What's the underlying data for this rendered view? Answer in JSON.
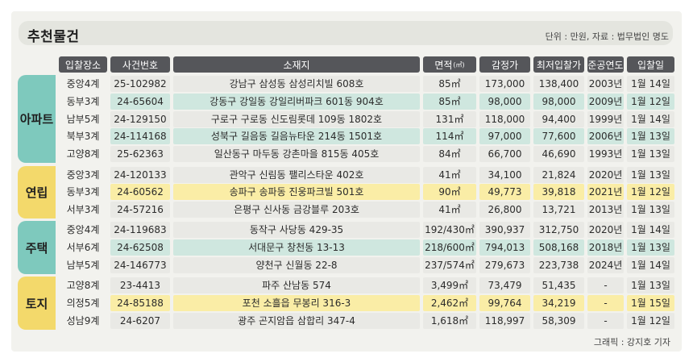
{
  "title": "추천물건",
  "unit_note": "단위 : 만원, 자료 : 법무법인 명도",
  "credit": "그래픽 : 강지호 기자",
  "colors": {
    "header": "#55565a",
    "apartment_group": "#7ec9bd",
    "apartment_stripe": "#cfe7df",
    "villa_group": "#f3d96b",
    "villa_stripe": "#faeda6",
    "house_group": "#7ec9bd",
    "house_stripe": "#cfe7df",
    "land_group": "#f3d96b",
    "land_stripe": "#faeda6",
    "plain": "#e9e9e5"
  },
  "headers": [
    "입찰장소",
    "사건번호",
    "소재지",
    "면적",
    "감정가",
    "최저입찰가",
    "준공연도",
    "입찰일"
  ],
  "area_unit": "(㎡)",
  "groups": [
    {
      "name": "아파트",
      "rows": [
        [
          "중앙4계",
          "25-102982",
          "강남구 삼성동 삼성리치빌 608호",
          "85㎡",
          "173,000",
          "138,400",
          "2003년",
          "1월 14일"
        ],
        [
          "동부3계",
          "24-65604",
          "강동구 강일동 강일리버파크 601동 904호",
          "85㎡",
          "98,000",
          "98,000",
          "2009년",
          "1월 12일"
        ],
        [
          "남부5계",
          "24-129150",
          "구로구 구로동 신도림롯데 109동 1802호",
          "131㎡",
          "118,000",
          "94,400",
          "1999년",
          "1월 14일"
        ],
        [
          "북부3계",
          "24-114168",
          "성북구 길음동 길음뉴타운 214동 1501호",
          "114㎡",
          "97,000",
          "77,600",
          "2006년",
          "1월 13일"
        ],
        [
          "고양8계",
          "25-62363",
          "일산동구 마두동 강촌마을 815동 405호",
          "84㎡",
          "66,700",
          "46,690",
          "1993년",
          "1월 13일"
        ]
      ]
    },
    {
      "name": "연립",
      "rows": [
        [
          "중앙3계",
          "24-120133",
          "관악구 신림동 팰리스타운 402호",
          "41㎡",
          "34,100",
          "21,824",
          "2020년",
          "1월 13일"
        ],
        [
          "동부3계",
          "24-60562",
          "송파구 송파동 진웅파크빌 501호",
          "90㎡",
          "49,773",
          "39,818",
          "2021년",
          "1월 12일"
        ],
        [
          "서부3계",
          "24-57216",
          "은평구 신사동 금강블루 203호",
          "41㎡",
          "26,800",
          "13,721",
          "2013년",
          "1월 13일"
        ]
      ]
    },
    {
      "name": "주택",
      "rows": [
        [
          "중앙4계",
          "24-119683",
          "동작구 사당동 429-35",
          "192/430㎡",
          "390,937",
          "312,750",
          "2020년",
          "1월 14일"
        ],
        [
          "서부6계",
          "24-62508",
          "서대문구 창천동 13-13",
          "218/600㎡",
          "794,013",
          "508,168",
          "2018년",
          "1월 13일"
        ],
        [
          "남부5계",
          "24-146773",
          "양천구 신월동 22-8",
          "237/574㎡",
          "279,673",
          "223,738",
          "2024년",
          "1월 14일"
        ]
      ]
    },
    {
      "name": "토지",
      "rows": [
        [
          "고양8계",
          "23-4413",
          "파주 산남동 574",
          "3,499㎡",
          "73,479",
          "51,435",
          "-",
          "1월 13일"
        ],
        [
          "의정5계",
          "24-85188",
          "포천 소흘읍 무봉리 316-3",
          "2,462㎡",
          "99,764",
          "34,219",
          "-",
          "1월 15일"
        ],
        [
          "성남9계",
          "24-6207",
          "광주 곤지암읍 삼합리 347-4",
          "1,618㎡",
          "118,997",
          "58,309",
          "-",
          "1월 12일"
        ]
      ]
    }
  ]
}
